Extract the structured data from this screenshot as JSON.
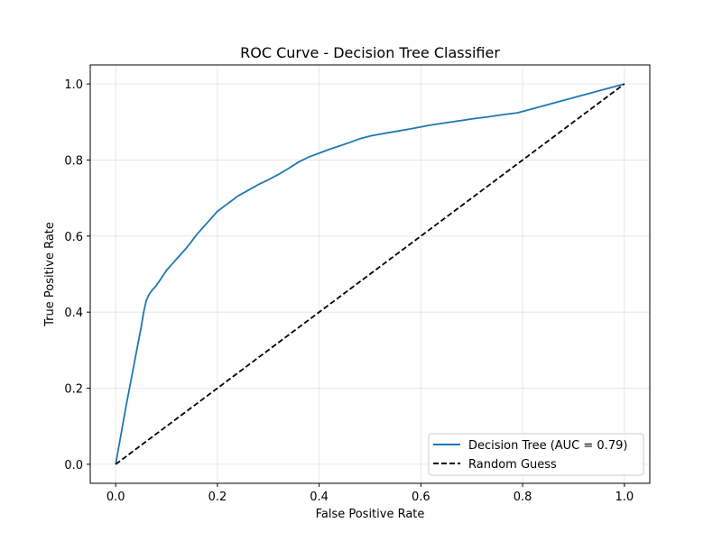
{
  "chart_data": {
    "type": "line",
    "title": "ROC Curve - Decision Tree Classifier",
    "xlabel": "False Positive Rate",
    "ylabel": "True Positive Rate",
    "xlim": [
      -0.05,
      1.05
    ],
    "ylim": [
      -0.05,
      1.05
    ],
    "x_ticks": [
      0.0,
      0.2,
      0.4,
      0.6,
      0.8,
      1.0
    ],
    "y_ticks": [
      0.0,
      0.2,
      0.4,
      0.6,
      0.8,
      1.0
    ],
    "x_tick_labels": [
      "0.0",
      "0.2",
      "0.4",
      "0.6",
      "0.8",
      "1.0"
    ],
    "y_tick_labels": [
      "0.0",
      "0.2",
      "0.4",
      "0.6",
      "0.8",
      "1.0"
    ],
    "grid": true,
    "legend_position": "lower-right",
    "series": [
      {
        "name": "Decision Tree (AUC = 0.79)",
        "color": "#1f77b4",
        "style": "solid",
        "x": [
          0.0,
          0.02,
          0.05,
          0.055,
          0.06,
          0.065,
          0.07,
          0.08,
          0.09,
          0.1,
          0.11,
          0.12,
          0.14,
          0.16,
          0.18,
          0.2,
          0.22,
          0.24,
          0.26,
          0.28,
          0.3,
          0.32,
          0.34,
          0.36,
          0.38,
          0.4,
          0.42,
          0.44,
          0.46,
          0.48,
          0.5,
          0.52,
          0.55,
          0.58,
          0.6,
          0.62,
          0.65,
          0.68,
          0.7,
          0.73,
          0.76,
          0.79,
          1.0
        ],
        "y": [
          0.0,
          0.15,
          0.36,
          0.4,
          0.43,
          0.445,
          0.455,
          0.47,
          0.49,
          0.51,
          0.525,
          0.54,
          0.57,
          0.605,
          0.635,
          0.665,
          0.685,
          0.705,
          0.72,
          0.735,
          0.748,
          0.762,
          0.778,
          0.795,
          0.808,
          0.818,
          0.828,
          0.837,
          0.846,
          0.856,
          0.863,
          0.868,
          0.875,
          0.882,
          0.887,
          0.892,
          0.898,
          0.904,
          0.908,
          0.913,
          0.919,
          0.924,
          1.0
        ]
      },
      {
        "name": "Random Guess",
        "color": "#000000",
        "style": "dashed",
        "x": [
          0.0,
          1.0
        ],
        "y": [
          0.0,
          1.0
        ]
      }
    ]
  }
}
